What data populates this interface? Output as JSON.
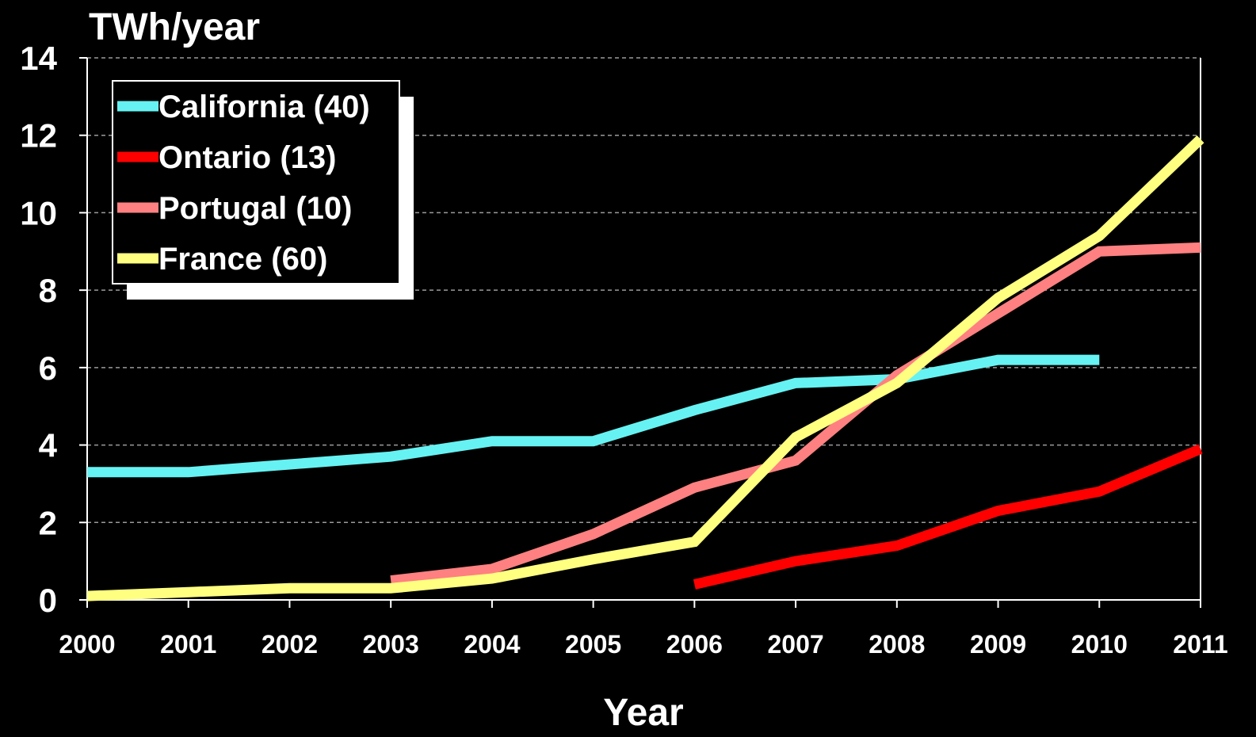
{
  "chart_data": {
    "type": "line",
    "title": "",
    "ylabel": "TWh/year",
    "xlabel": "Year",
    "x": [
      2000,
      2001,
      2002,
      2003,
      2004,
      2005,
      2006,
      2007,
      2008,
      2009,
      2010,
      2011
    ],
    "ylim": [
      0,
      14
    ],
    "yticks": [
      0,
      2,
      4,
      6,
      8,
      10,
      12,
      14
    ],
    "grid": "horizontal-dashed",
    "legend_position": "top-left",
    "series": [
      {
        "name": "California (40)",
        "color": "#66f2f2",
        "values": [
          3.3,
          3.3,
          3.5,
          3.7,
          4.1,
          4.1,
          4.9,
          5.6,
          5.7,
          6.2,
          6.2,
          null
        ]
      },
      {
        "name": "Ontario (13)",
        "color": "#ff0000",
        "values": [
          null,
          null,
          null,
          null,
          null,
          null,
          0.4,
          1.0,
          1.4,
          2.3,
          2.8,
          3.9
        ]
      },
      {
        "name": "Portugal (10)",
        "color": "#ff8080",
        "values": [
          null,
          null,
          null,
          0.5,
          0.8,
          1.7,
          2.9,
          3.6,
          5.8,
          7.4,
          9.0,
          9.1
        ]
      },
      {
        "name": "France (60)",
        "color": "#ffff80",
        "values": [
          0.1,
          0.2,
          0.3,
          0.3,
          0.55,
          1.05,
          1.5,
          4.2,
          5.6,
          7.8,
          9.4,
          11.9
        ]
      }
    ]
  }
}
